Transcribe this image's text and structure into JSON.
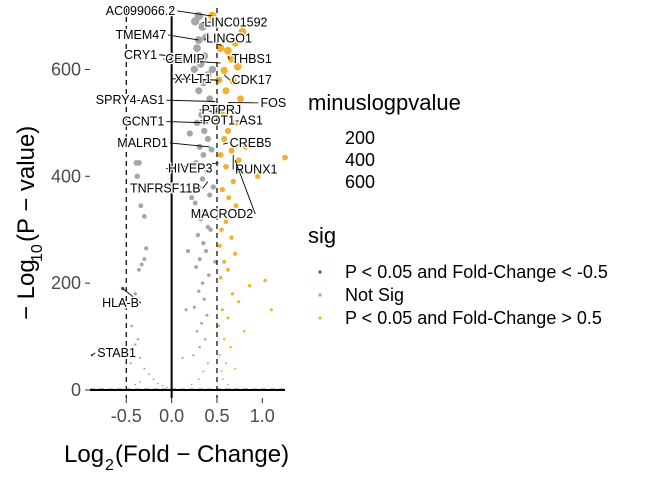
{
  "chart_data": {
    "type": "scatter",
    "title": "",
    "xlabel": "Log2(Fold − Change)",
    "ylabel": "−Log10(P − value)",
    "xlim": [
      -0.9,
      1.25
    ],
    "ylim": [
      -15,
      715
    ],
    "x_ticks": [
      -0.5,
      0.0,
      0.5,
      1.0
    ],
    "x_tick_labels": [
      "-0.5",
      "0.0",
      "0.5",
      "1.0"
    ],
    "y_ticks": [
      0,
      200,
      400,
      600
    ],
    "y_tick_labels": [
      "0",
      "200",
      "400",
      "600"
    ],
    "grid": false,
    "thresholds": {
      "fold_change": [
        -0.5,
        0.5
      ],
      "pvalue_line": 1.3
    },
    "colors": {
      "down": "#2166ac",
      "ns": "#a6a6a6",
      "up": "#f0b030"
    },
    "legend_size": {
      "title": "minuslogpvalue",
      "values": [
        "200",
        "400",
        "600"
      ]
    },
    "legend_color": {
      "title": "sig",
      "entries": [
        {
          "label": "P < 0.05 and Fold-Change < -0.5",
          "key": "down"
        },
        {
          "label": "Not Sig",
          "key": "ns"
        },
        {
          "label": "P < 0.05 and Fold-Change > 0.5",
          "key": "up"
        }
      ]
    },
    "points": [
      [
        -0.54,
        190,
        "down"
      ],
      [
        -0.88,
        65,
        "down"
      ],
      [
        -0.39,
        425,
        "ns"
      ],
      [
        -0.36,
        425,
        "ns"
      ],
      [
        -0.38,
        400,
        "ns"
      ],
      [
        -0.34,
        345,
        "ns"
      ],
      [
        -0.3,
        325,
        "ns"
      ],
      [
        -0.28,
        265,
        "ns"
      ],
      [
        -0.3,
        245,
        "ns"
      ],
      [
        -0.33,
        235,
        "ns"
      ],
      [
        -0.36,
        225,
        "ns"
      ],
      [
        -0.4,
        180,
        "ns"
      ],
      [
        -0.44,
        120,
        "ns"
      ],
      [
        -0.37,
        95,
        "ns"
      ],
      [
        -0.4,
        85,
        "ns"
      ],
      [
        -0.42,
        75,
        "ns"
      ],
      [
        -0.35,
        60,
        "ns"
      ],
      [
        -0.3,
        40,
        "ns"
      ],
      [
        -0.25,
        30,
        "ns"
      ],
      [
        -0.2,
        20,
        "ns"
      ],
      [
        -0.35,
        15,
        "ns"
      ],
      [
        -0.4,
        10,
        "ns"
      ],
      [
        -0.15,
        12,
        "ns"
      ],
      [
        -0.1,
        8,
        "ns"
      ],
      [
        -0.05,
        5,
        "ns"
      ],
      [
        -0.45,
        50,
        "ns"
      ],
      [
        -0.5,
        40,
        "ns"
      ],
      [
        0.3,
        700,
        "ns"
      ],
      [
        0.34,
        680,
        "ns"
      ],
      [
        0.26,
        690,
        "ns"
      ],
      [
        0.38,
        660,
        "ns"
      ],
      [
        0.3,
        655,
        "ns"
      ],
      [
        0.28,
        640,
        "ns"
      ],
      [
        0.36,
        625,
        "ns"
      ],
      [
        0.32,
        610,
        "ns"
      ],
      [
        0.25,
        600,
        "ns"
      ],
      [
        0.4,
        590,
        "ns"
      ],
      [
        0.35,
        575,
        "ns"
      ],
      [
        0.3,
        560,
        "ns"
      ],
      [
        0.42,
        545,
        "ns"
      ],
      [
        0.38,
        530,
        "ns"
      ],
      [
        0.33,
        515,
        "ns"
      ],
      [
        0.28,
        500,
        "ns"
      ],
      [
        0.36,
        485,
        "ns"
      ],
      [
        0.4,
        470,
        "ns"
      ],
      [
        0.31,
        455,
        "ns"
      ],
      [
        0.35,
        440,
        "ns"
      ],
      [
        0.27,
        425,
        "ns"
      ],
      [
        0.39,
        410,
        "ns"
      ],
      [
        0.34,
        395,
        "ns"
      ],
      [
        0.3,
        380,
        "ns"
      ],
      [
        0.42,
        365,
        "ns"
      ],
      [
        0.26,
        350,
        "ns"
      ],
      [
        0.36,
        335,
        "ns"
      ],
      [
        0.32,
        320,
        "ns"
      ],
      [
        0.4,
        305,
        "ns"
      ],
      [
        0.29,
        290,
        "ns"
      ],
      [
        0.35,
        275,
        "ns"
      ],
      [
        0.38,
        260,
        "ns"
      ],
      [
        0.31,
        245,
        "ns"
      ],
      [
        0.27,
        230,
        "ns"
      ],
      [
        0.41,
        215,
        "ns"
      ],
      [
        0.34,
        200,
        "ns"
      ],
      [
        0.3,
        185,
        "ns"
      ],
      [
        0.36,
        170,
        "ns"
      ],
      [
        0.25,
        155,
        "ns"
      ],
      [
        0.39,
        140,
        "ns"
      ],
      [
        0.33,
        125,
        "ns"
      ],
      [
        0.28,
        110,
        "ns"
      ],
      [
        0.37,
        95,
        "ns"
      ],
      [
        0.31,
        80,
        "ns"
      ],
      [
        0.24,
        65,
        "ns"
      ],
      [
        0.4,
        50,
        "ns"
      ],
      [
        0.35,
        35,
        "ns"
      ],
      [
        0.3,
        20,
        "ns"
      ],
      [
        0.22,
        10,
        "ns"
      ],
      [
        0.45,
        600,
        "ns"
      ],
      [
        0.47,
        520,
        "ns"
      ],
      [
        0.44,
        450,
        "ns"
      ],
      [
        0.46,
        380,
        "ns"
      ],
      [
        0.43,
        300,
        "ns"
      ],
      [
        0.48,
        240,
        "ns"
      ],
      [
        0.2,
        480,
        "ns"
      ],
      [
        0.22,
        360,
        "ns"
      ],
      [
        0.18,
        260,
        "ns"
      ],
      [
        0.16,
        150,
        "ns"
      ],
      [
        0.12,
        60,
        "ns"
      ],
      [
        0.45,
        700,
        "up"
      ],
      [
        0.56,
        690,
        "up"
      ],
      [
        0.78,
        670,
        "up"
      ],
      [
        0.7,
        650,
        "up"
      ],
      [
        0.62,
        635,
        "up"
      ],
      [
        0.54,
        640,
        "up"
      ],
      [
        0.66,
        620,
        "up"
      ],
      [
        0.73,
        605,
        "up"
      ],
      [
        0.58,
        598,
        "up"
      ],
      [
        0.68,
        578,
        "up"
      ],
      [
        0.52,
        580,
        "up"
      ],
      [
        0.6,
        560,
        "up"
      ],
      [
        0.76,
        545,
        "up"
      ],
      [
        0.64,
        530,
        "up"
      ],
      [
        0.55,
        518,
        "up"
      ],
      [
        0.7,
        500,
        "up"
      ],
      [
        0.62,
        485,
        "up"
      ],
      [
        0.58,
        470,
        "up"
      ],
      [
        0.82,
        455,
        "up"
      ],
      [
        0.66,
        448,
        "up"
      ],
      [
        0.54,
        440,
        "up"
      ],
      [
        0.74,
        430,
        "up"
      ],
      [
        0.6,
        418,
        "up"
      ],
      [
        1.25,
        435,
        "up"
      ],
      [
        0.95,
        400,
        "up"
      ],
      [
        0.68,
        390,
        "up"
      ],
      [
        0.56,
        375,
        "up"
      ],
      [
        0.63,
        360,
        "up"
      ],
      [
        0.71,
        345,
        "up"
      ],
      [
        0.52,
        330,
        "up"
      ],
      [
        0.6,
        315,
        "up"
      ],
      [
        0.55,
        300,
        "up"
      ],
      [
        0.66,
        285,
        "up"
      ],
      [
        0.53,
        270,
        "up"
      ],
      [
        0.7,
        255,
        "up"
      ],
      [
        0.58,
        240,
        "up"
      ],
      [
        0.62,
        225,
        "up"
      ],
      [
        0.54,
        210,
        "up"
      ],
      [
        1.03,
        205,
        "up"
      ],
      [
        0.86,
        195,
        "up"
      ],
      [
        0.67,
        180,
        "up"
      ],
      [
        0.74,
        165,
        "up"
      ],
      [
        0.56,
        150,
        "up"
      ],
      [
        1.1,
        150,
        "up"
      ],
      [
        0.62,
        135,
        "up"
      ],
      [
        0.52,
        120,
        "up"
      ],
      [
        0.8,
        110,
        "up"
      ],
      [
        0.58,
        95,
        "up"
      ],
      [
        0.65,
        80,
        "up"
      ],
      [
        0.53,
        65,
        "up"
      ],
      [
        0.6,
        50,
        "up"
      ],
      [
        0.55,
        35,
        "up"
      ],
      [
        0.57,
        20,
        "up"
      ],
      [
        0.62,
        10,
        "up"
      ],
      [
        0.7,
        40,
        "up"
      ]
    ],
    "gene_labels": [
      {
        "label": "AC099066.2",
        "x": 0.45,
        "y": 700,
        "tx": 0.04,
        "ty": 702,
        "anchor": "end"
      },
      {
        "label": "LINC01592",
        "x": 0.55,
        "y": 690,
        "tx": 0.36,
        "ty": 680,
        "anchor": "start"
      },
      {
        "label": "TMEM47",
        "x": 0.3,
        "y": 655,
        "tx": -0.06,
        "ty": 657,
        "anchor": "end"
      },
      {
        "label": "LINGO1",
        "x": 0.55,
        "y": 645,
        "tx": 0.38,
        "ty": 650,
        "anchor": "start"
      },
      {
        "label": "CRY1",
        "x": 0.28,
        "y": 620,
        "tx": -0.16,
        "ty": 620,
        "anchor": "end"
      },
      {
        "label": "CEMIP",
        "x": 0.54,
        "y": 612,
        "tx": -0.07,
        "ty": 612,
        "anchor": "start"
      },
      {
        "label": "THBS1",
        "x": 0.62,
        "y": 625,
        "tx": 0.66,
        "ty": 612,
        "anchor": "start"
      },
      {
        "label": "XYLT1",
        "x": 0.52,
        "y": 580,
        "tx": 0.03,
        "ty": 575,
        "anchor": "start"
      },
      {
        "label": "CDK17",
        "x": 0.58,
        "y": 590,
        "tx": 0.66,
        "ty": 573,
        "anchor": "start"
      },
      {
        "label": "SPRY4-AS1",
        "x": 0.48,
        "y": 540,
        "tx": -0.08,
        "ty": 535,
        "anchor": "end"
      },
      {
        "label": "FOS",
        "x": 0.62,
        "y": 538,
        "tx": 0.98,
        "ty": 530,
        "anchor": "start"
      },
      {
        "label": "PTPRJ",
        "x": 0.52,
        "y": 520,
        "tx": 0.33,
        "ty": 517,
        "anchor": "start"
      },
      {
        "label": "GCNT1",
        "x": 0.4,
        "y": 500,
        "tx": -0.08,
        "ty": 495,
        "anchor": "end"
      },
      {
        "label": "POT1-AS1",
        "x": 0.54,
        "y": 505,
        "tx": 0.34,
        "ty": 497,
        "anchor": "start"
      },
      {
        "label": "MALRD1",
        "x": 0.42,
        "y": 455,
        "tx": -0.04,
        "ty": 455,
        "anchor": "end"
      },
      {
        "label": "CREB5",
        "x": 0.57,
        "y": 460,
        "tx": 0.64,
        "ty": 455,
        "anchor": "start"
      },
      {
        "label": "HIVEP3",
        "x": 0.52,
        "y": 425,
        "tx": -0.04,
        "ty": 407,
        "anchor": "start"
      },
      {
        "label": "RUNX1",
        "x": 0.68,
        "y": 440,
        "tx": 0.7,
        "ty": 405,
        "anchor": "start"
      },
      {
        "label": "TNFRSF11B",
        "x": 0.4,
        "y": 390,
        "tx": 0.32,
        "ty": 370,
        "anchor": "end"
      },
      {
        "label": "MACROD2",
        "x": 0.7,
        "y": 430,
        "tx": 0.9,
        "ty": 322,
        "anchor": "end"
      },
      {
        "label": "HLA-B",
        "x": -0.54,
        "y": 190,
        "tx": -0.36,
        "ty": 155,
        "anchor": "end"
      },
      {
        "label": "STAB1",
        "x": -0.88,
        "y": 65,
        "tx": -0.82,
        "ty": 62,
        "anchor": "start"
      }
    ]
  }
}
